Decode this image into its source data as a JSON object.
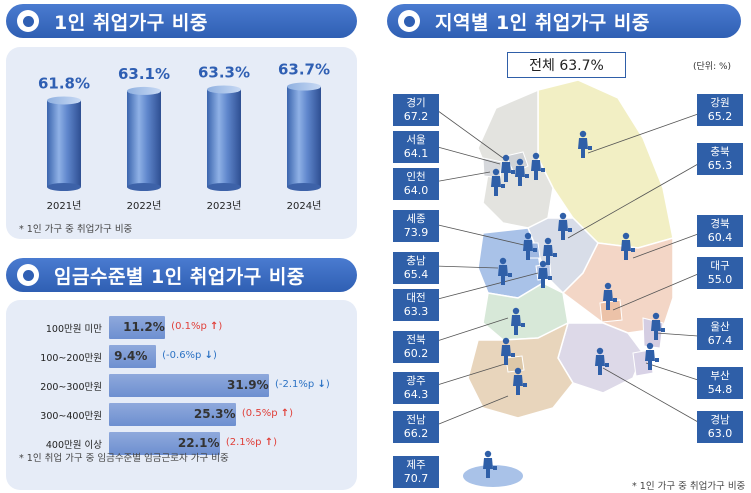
{
  "left_top": {
    "header": "1인 취업가구 비중",
    "footnote": "* 1인 가구 중 취업가구 비중"
  },
  "left_bottom": {
    "header": "임금수준별 1인 취업가구 비중",
    "footnote": "* 1인 취업 가구 중 임금수준별 임금근로자 가구 비중"
  },
  "right": {
    "header": "지역별 1인 취업가구 비중",
    "total_label": "전체 63.7%",
    "unit": "(단위: %)",
    "footnote": "* 1인 가구 중 취업가구 비중"
  },
  "chart_data": [
    {
      "type": "bar",
      "categories": [
        "2021년",
        "2022년",
        "2023년",
        "2024년"
      ],
      "values": [
        61.8,
        63.1,
        63.3,
        63.7
      ],
      "value_labels": [
        "61.8%",
        "63.1%",
        "63.3%",
        "63.7%"
      ],
      "title": "1인 취업가구 비중"
    },
    {
      "type": "bar",
      "orientation": "horizontal",
      "categories": [
        "100만원 미만",
        "100~200만원",
        "200~300만원",
        "300~400만원",
        "400만원 이상"
      ],
      "values": [
        11.2,
        9.4,
        31.9,
        25.3,
        22.1
      ],
      "value_labels": [
        "11.2%",
        "9.4%",
        "31.9%",
        "25.3%",
        "22.1%"
      ],
      "changes": [
        "(0.1%p",
        "(-0.6%p",
        "(-2.1%p",
        "(0.5%p",
        "(2.1%p"
      ],
      "change_dirs": [
        "up",
        "down",
        "down",
        "up",
        "up"
      ],
      "title": "임금수준별 1인 취업가구 비중"
    },
    {
      "type": "table",
      "title": "지역별 1인 취업가구 비중",
      "regions": [
        {
          "name": "경기",
          "value": "67.2"
        },
        {
          "name": "서울",
          "value": "64.1"
        },
        {
          "name": "인천",
          "value": "64.0"
        },
        {
          "name": "세종",
          "value": "73.9"
        },
        {
          "name": "충남",
          "value": "65.4"
        },
        {
          "name": "대전",
          "value": "63.3"
        },
        {
          "name": "전북",
          "value": "60.2"
        },
        {
          "name": "광주",
          "value": "64.3"
        },
        {
          "name": "전남",
          "value": "66.2"
        },
        {
          "name": "제주",
          "value": "70.7"
        },
        {
          "name": "강원",
          "value": "65.2"
        },
        {
          "name": "충북",
          "value": "65.3"
        },
        {
          "name": "경북",
          "value": "60.4"
        },
        {
          "name": "대구",
          "value": "55.0"
        },
        {
          "name": "울산",
          "value": "67.4"
        },
        {
          "name": "부산",
          "value": "54.8"
        },
        {
          "name": "경남",
          "value": "63.0"
        }
      ]
    }
  ],
  "colors": {
    "header": "#2f5fb3",
    "panel": "#e6ecf7",
    "bar": "#6d8fd0",
    "region_box": "#2f5fa8",
    "up": "#e0403a",
    "down": "#2d73c4"
  }
}
